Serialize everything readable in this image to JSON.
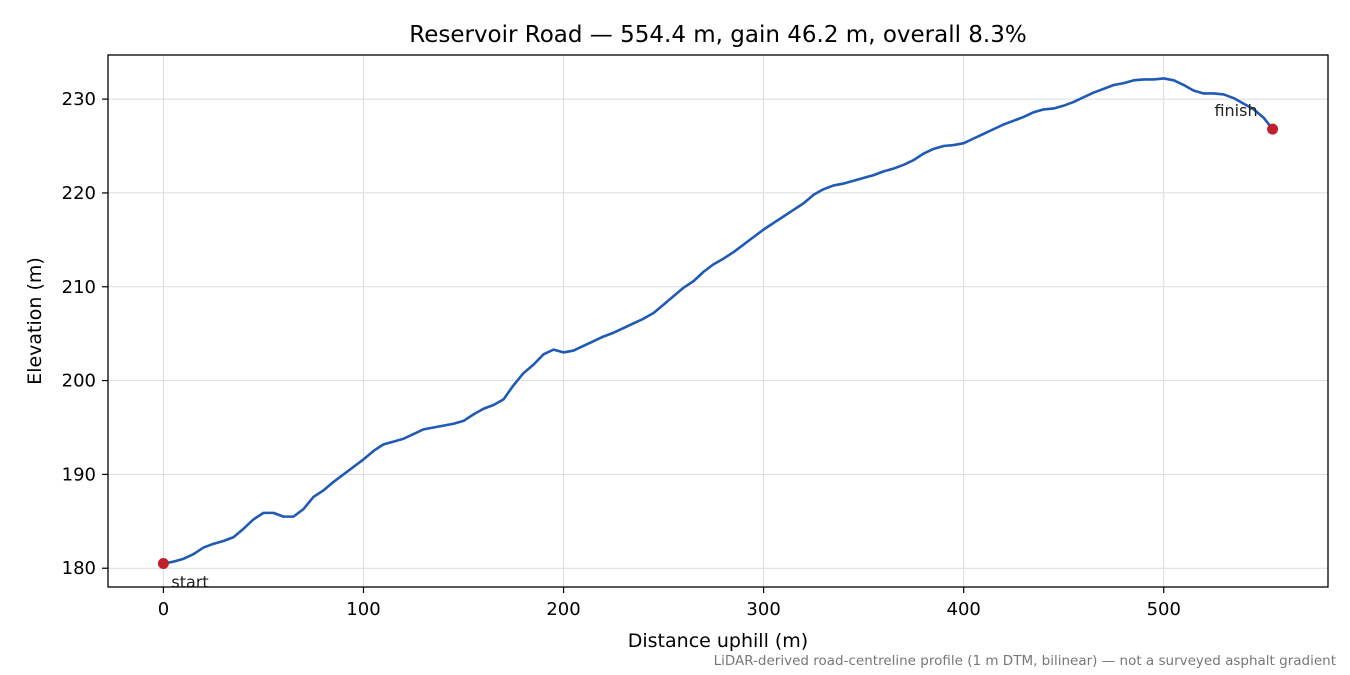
{
  "chart_data": {
    "type": "line",
    "title": "Reservoir Road — 554.4 m, gain 46.2 m, overall 8.3%",
    "xlabel": "Distance uphill (m)",
    "ylabel": "Elevation (m)",
    "xlim": [
      -27.7,
      582.1
    ],
    "ylim": [
      178.0,
      234.7
    ],
    "x_ticks": [
      0,
      100,
      200,
      300,
      400,
      500
    ],
    "y_ticks": [
      180,
      190,
      200,
      210,
      220,
      230
    ],
    "grid": true,
    "footnote": "LiDAR-derived road-centreline profile (1 m DTM, bilinear) — not a surveyed asphalt gradient",
    "colors": {
      "line": "#1f5bb5",
      "endpoint": "#c0202c",
      "grid": "#dcdcdc",
      "footnote": "#777777"
    },
    "series": [
      {
        "x": [
          0,
          5,
          10,
          15,
          20,
          25,
          30,
          35,
          40,
          45,
          50,
          55,
          60,
          65,
          70,
          75,
          80,
          85,
          90,
          95,
          100,
          105,
          110,
          115,
          120,
          125,
          130,
          135,
          140,
          145,
          150,
          155,
          160,
          165,
          170,
          175,
          180,
          185,
          190,
          195,
          200,
          205,
          210,
          215,
          220,
          225,
          230,
          235,
          240,
          245,
          250,
          255,
          260,
          265,
          270,
          275,
          280,
          285,
          290,
          295,
          300,
          305,
          310,
          315,
          320,
          325,
          330,
          335,
          340,
          345,
          350,
          355,
          360,
          365,
          370,
          375,
          380,
          385,
          390,
          395,
          400,
          405,
          410,
          415,
          420,
          425,
          430,
          435,
          440,
          445,
          450,
          455,
          460,
          465,
          470,
          475,
          480,
          485,
          490,
          495,
          500,
          505,
          510,
          515,
          520,
          525,
          530,
          535,
          540,
          545,
          550,
          554.4
        ],
        "y": [
          180.5,
          180.7,
          181.0,
          181.5,
          182.2,
          182.6,
          182.9,
          183.3,
          184.2,
          185.2,
          185.9,
          185.9,
          185.5,
          185.5,
          186.3,
          187.6,
          188.3,
          189.2,
          190.0,
          190.8,
          191.6,
          192.5,
          193.2,
          193.5,
          193.8,
          194.3,
          194.8,
          195.0,
          195.2,
          195.4,
          195.7,
          196.4,
          197.0,
          197.4,
          198.0,
          199.5,
          200.8,
          201.7,
          202.8,
          203.3,
          203.0,
          203.2,
          203.7,
          204.2,
          204.7,
          205.1,
          205.6,
          206.1,
          206.6,
          207.2,
          208.1,
          209.0,
          209.9,
          210.6,
          211.6,
          212.4,
          213.0,
          213.7,
          214.5,
          215.3,
          216.1,
          216.8,
          217.5,
          218.2,
          218.9,
          219.8,
          220.4,
          220.8,
          221.0,
          221.3,
          221.6,
          221.9,
          222.3,
          222.6,
          223.0,
          223.5,
          224.2,
          224.7,
          225.0,
          225.1,
          225.3,
          225.8,
          226.3,
          226.8,
          227.3,
          227.7,
          228.1,
          228.6,
          228.9,
          229.0,
          229.3,
          229.7,
          230.2,
          230.7,
          231.1,
          231.5,
          231.7,
          232.0,
          232.1,
          232.1,
          232.2,
          232.0,
          231.5,
          230.9,
          230.6,
          230.6,
          230.5,
          230.1,
          229.5,
          228.9,
          228.0,
          226.8
        ]
      }
    ],
    "annotations": [
      {
        "text": "start",
        "x": 0,
        "y": 180.5
      },
      {
        "text": "finish",
        "x": 554.4,
        "y": 226.8
      }
    ]
  }
}
